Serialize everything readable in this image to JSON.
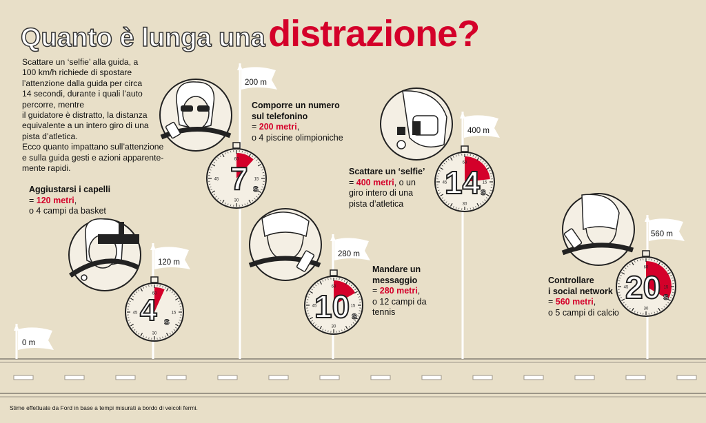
{
  "title": {
    "part1": "Quanto è lunga una",
    "part2": "distrazione?"
  },
  "intro": [
    "Scattare un ‘selfie’ alla guida, a",
    "100 km/h richiede di spostare",
    "l’attenzione dalla guida per circa",
    "14 secondi, durante i quali l’auto",
    "percorre, mentre",
    "il guidatore è distratto, la distanza",
    "equivalente a un intero giro di una",
    "pista d’atletica.",
    "Ecco quanto impattano sull’attenzione",
    "e sulla guida gesti e azioni apparente-",
    "mente rapidi."
  ],
  "stopwatch_ticks": {
    "top": "60",
    "right": "15",
    "bottom": "30",
    "left": "45"
  },
  "markers": [
    {
      "distance": "0 m"
    },
    {
      "distance": "120 m",
      "seconds": "4",
      "unit": "s",
      "fraction": 0.067,
      "heading": "Aggiustarsi i capelli",
      "equals": "= ",
      "meters": "120 metri",
      "rest": [
        "o 4 campi da basket"
      ]
    },
    {
      "distance": "200 m",
      "seconds": "7",
      "unit": "s",
      "fraction": 0.117,
      "heading": [
        "Comporre un numero",
        "sul telefonino"
      ],
      "equals": "= ",
      "meters": "200 metri",
      "rest": [
        "o 4 piscine olimpioniche"
      ]
    },
    {
      "distance": "280 m",
      "seconds": "10",
      "unit": "s",
      "fraction": 0.167,
      "heading": [
        "Mandare un",
        "messaggio"
      ],
      "equals": "= ",
      "meters": "280 metri",
      "rest": [
        "o 12 campi da",
        "tennis"
      ]
    },
    {
      "distance": "400 m",
      "seconds": "14",
      "unit": "s",
      "fraction": 0.233,
      "heading": "Scattare un ‘selfie’",
      "equals": "= ",
      "meters": "400 metri",
      "rest_inline": ", o un",
      "rest": [
        "giro intero di una",
        "pista d’atletica"
      ]
    },
    {
      "distance": "560 m",
      "seconds": "20",
      "unit": "s",
      "fraction": 0.333,
      "heading": [
        "Controllare",
        "i social network"
      ],
      "equals": "= ",
      "meters": "560 metri",
      "rest_inline": ",",
      "rest": [
        "o 5 campi di calcio"
      ]
    }
  ],
  "footnote": "Stime effettuate da Ford in base a tempi misurati a bordo di veicoli fermi.",
  "colors": {
    "background": "#e8dfc8",
    "accent": "#d4002a",
    "ink": "#222222",
    "face": "#f4efe4"
  }
}
